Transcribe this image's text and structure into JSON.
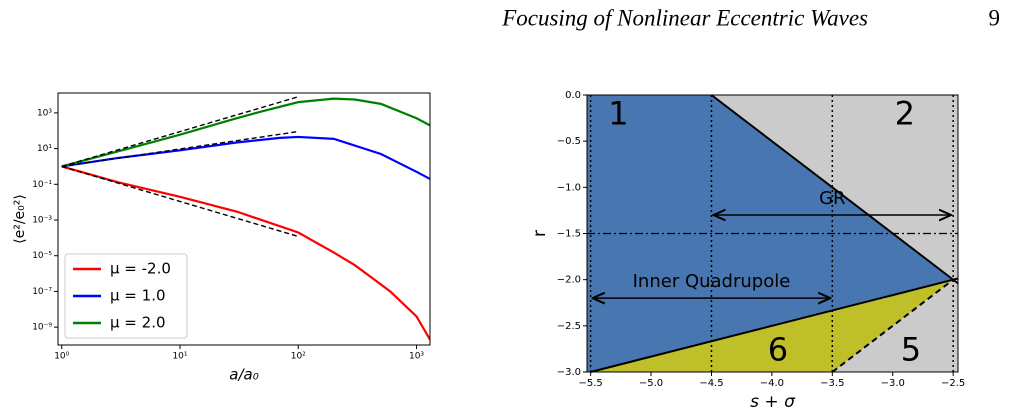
{
  "header": {
    "title": "Focusing of Nonlinear Eccentric Waves",
    "page": "9"
  },
  "chart_data": [
    {
      "type": "line",
      "xlabel": "a/a₀",
      "ylabel": "⟨e²/e₀²⟩",
      "xlog": true,
      "ylog": true,
      "xlim": [
        0.93,
        1300
      ],
      "ylim": [
        1e-10,
        13000
      ],
      "xticks": [
        {
          "value": 1,
          "label": "10⁰"
        },
        {
          "value": 10,
          "label": "10¹"
        },
        {
          "value": 100,
          "label": "10²"
        },
        {
          "value": 1000,
          "label": "10³"
        }
      ],
      "yticks": [
        {
          "value": 1e-09,
          "label": "10⁻⁹"
        },
        {
          "value": 1e-07,
          "label": "10⁻⁷"
        },
        {
          "value": 1e-05,
          "label": "10⁻⁵"
        },
        {
          "value": 0.001,
          "label": "10⁻³"
        },
        {
          "value": 0.1,
          "label": "10⁻¹"
        },
        {
          "value": 10,
          "label": "10¹"
        },
        {
          "value": 1000,
          "label": "10³"
        }
      ],
      "legend": "lower-left",
      "series": [
        {
          "name": "μ = -2.0",
          "color": "#ff0000",
          "x": [
            1,
            3,
            10,
            30,
            100,
            200,
            300,
            600,
            1000,
            1300
          ],
          "values": [
            1,
            0.13,
            0.02,
            0.003,
            0.0002,
            1.5e-05,
            3e-06,
            1e-07,
            4e-09,
            2e-10
          ]
        },
        {
          "name": "μ = 1.0",
          "color": "#0000ff",
          "x": [
            1,
            3,
            10,
            30,
            70,
            100,
            200,
            500,
            1000,
            1300
          ],
          "values": [
            1,
            3,
            8,
            22,
            40,
            45,
            35,
            5,
            0.5,
            0.2
          ]
        },
        {
          "name": "μ = 2.0",
          "color": "#008000",
          "x": [
            1,
            3,
            10,
            30,
            50,
            100,
            200,
            300,
            500,
            1000,
            1300
          ],
          "values": [
            1,
            7,
            60,
            500,
            1250,
            4000,
            6300,
            5600,
            3200,
            500,
            200
          ]
        }
      ],
      "asymptotes": [
        {
          "color": "#000000",
          "x": [
            1,
            100
          ],
          "values": [
            1,
            0.00012
          ]
        },
        {
          "color": "#000000",
          "x": [
            1,
            100
          ],
          "values": [
            1,
            90
          ]
        },
        {
          "color": "#000000",
          "x": [
            1,
            100
          ],
          "values": [
            1,
            8000
          ]
        }
      ]
    },
    {
      "type": "area",
      "xlabel": "s + σ",
      "ylabel": "r",
      "xlim": [
        -5.53,
        -2.46
      ],
      "ylim": [
        -3,
        0
      ],
      "xticks": [
        {
          "value": -5.5,
          "label": "−5.5"
        },
        {
          "value": -5.0,
          "label": "−5.0"
        },
        {
          "value": -4.5,
          "label": "−4.5"
        },
        {
          "value": -4.0,
          "label": "−4.0"
        },
        {
          "value": -3.5,
          "label": "−3.5"
        },
        {
          "value": -3.0,
          "label": "−3.0"
        },
        {
          "value": -2.5,
          "label": "−2.5"
        }
      ],
      "yticks": [
        {
          "value": 0,
          "label": "0.0"
        },
        {
          "value": -0.5,
          "label": "−0.5"
        },
        {
          "value": -1.0,
          "label": "−1.0"
        },
        {
          "value": -1.5,
          "label": "−1.5"
        },
        {
          "value": -2.0,
          "label": "−2.0"
        },
        {
          "value": -2.5,
          "label": "−2.5"
        },
        {
          "value": -3.0,
          "label": "−3.0"
        }
      ],
      "background": "#cbcbcb",
      "regions": [
        {
          "color": "#4876b0",
          "x": [
            -5.53,
            -4.5,
            -2.5,
            -5.5,
            -5.53
          ],
          "y": [
            0,
            0,
            -2,
            -3,
            -3
          ]
        },
        {
          "color": "#bfbf2a",
          "x": [
            -5.5,
            -2.5,
            -3.5
          ],
          "y": [
            -3,
            -2,
            -3
          ]
        }
      ],
      "boundaries": [
        {
          "x": [
            -4.5,
            -2.46
          ],
          "y": [
            0,
            -2.04
          ],
          "dash": false
        },
        {
          "x": [
            -5.5,
            -2.46
          ],
          "y": [
            -3,
            -1.987
          ],
          "dash": false
        },
        {
          "x": [
            -3.5,
            -2.5
          ],
          "y": [
            -3,
            -2
          ],
          "dash": true
        }
      ],
      "vlines": [
        -5.5,
        -4.5,
        -3.5,
        -2.5
      ],
      "hline": -1.5,
      "arrows": [
        {
          "label": "GR",
          "x": [
            -4.5,
            -2.5
          ],
          "y": -1.3
        },
        {
          "label": "Inner Quadrupole",
          "x": [
            -5.5,
            -3.5
          ],
          "y": -2.2
        }
      ],
      "region_labels": [
        {
          "label": "1",
          "x": -5.27,
          "y": -0.22
        },
        {
          "label": "2",
          "x": -2.9,
          "y": -0.22
        },
        {
          "label": "6",
          "x": -3.95,
          "y": -2.78
        },
        {
          "label": "5",
          "x": -2.85,
          "y": -2.78
        }
      ]
    }
  ]
}
